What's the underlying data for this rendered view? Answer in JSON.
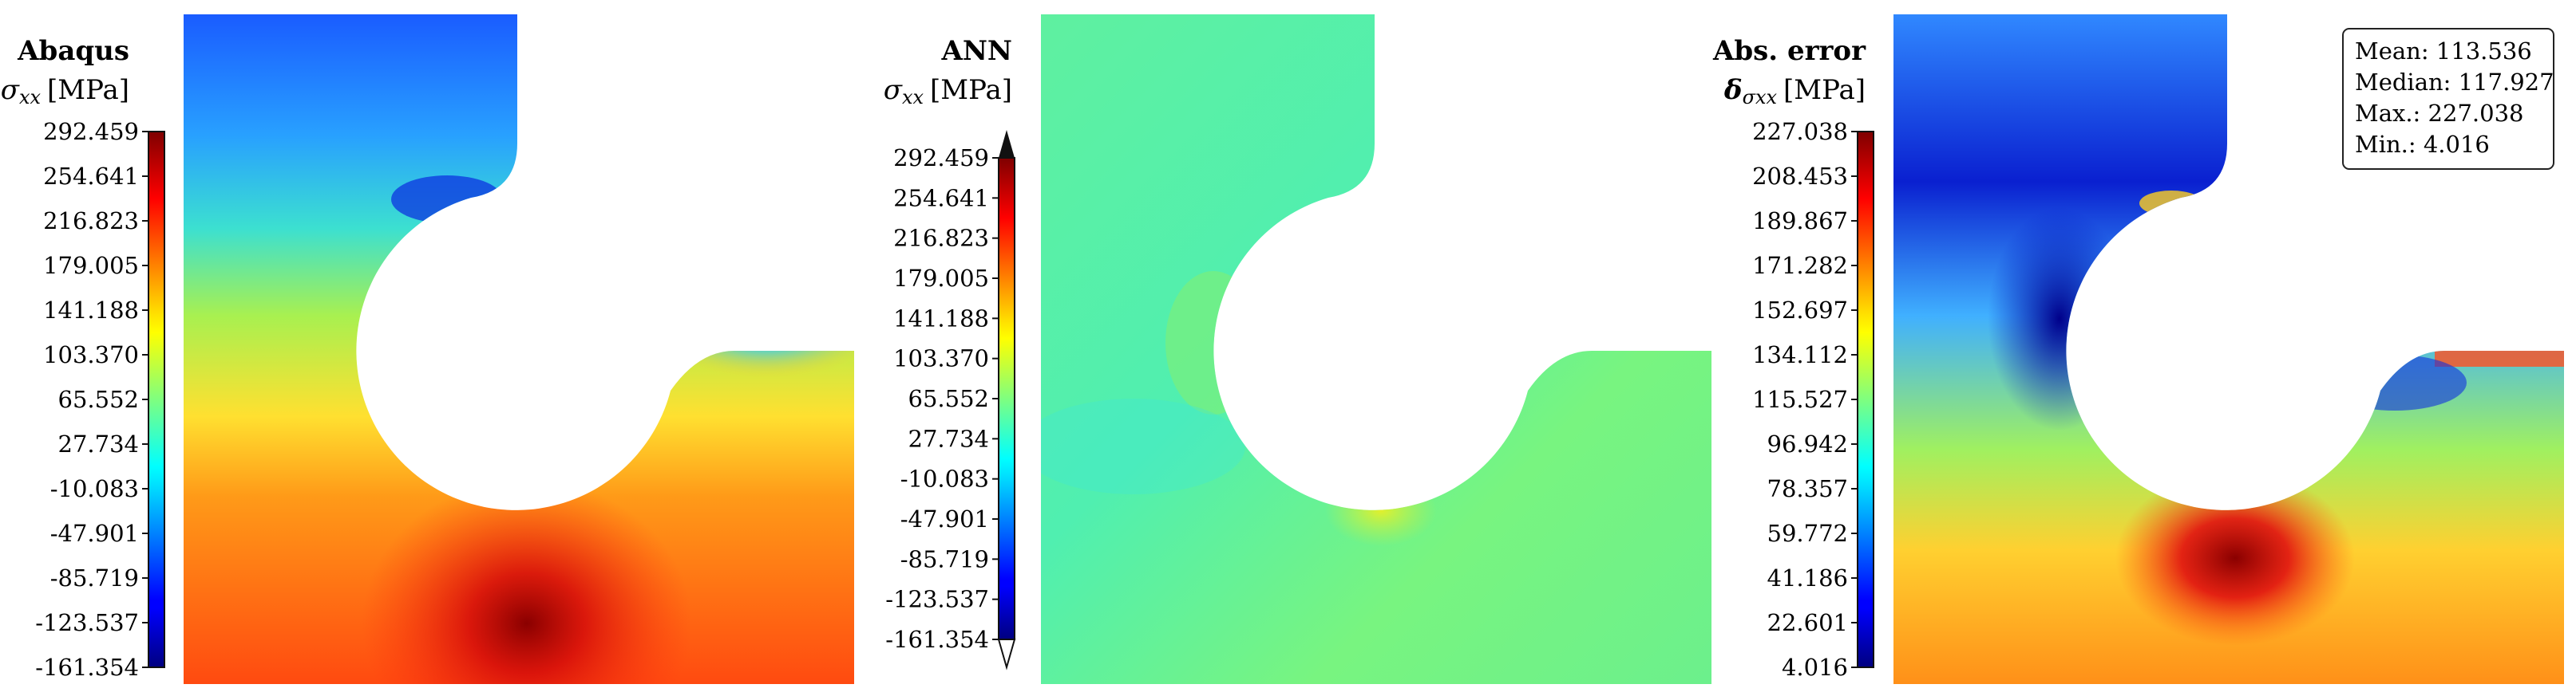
{
  "chart_data": [
    {
      "type": "heatmap",
      "id": "abaqus",
      "title": "Abaqus",
      "quantity": "σ",
      "quantity_sub": "xx",
      "unit": "[MPa]",
      "range": [
        -161.354,
        292.459
      ],
      "ticks": [
        "292.459",
        "254.641",
        "216.823",
        "179.005",
        "141.188",
        "103.370",
        "65.552",
        "27.734",
        "-10.083",
        "-47.901",
        "-85.719",
        "-123.537",
        "-161.354"
      ],
      "colorbar_extend": "none"
    },
    {
      "type": "heatmap",
      "id": "ann",
      "title": "ANN",
      "quantity": "σ",
      "quantity_sub": "xx",
      "unit": "[MPa]",
      "range": [
        -161.354,
        292.459
      ],
      "ticks": [
        "292.459",
        "254.641",
        "216.823",
        "179.005",
        "141.188",
        "103.370",
        "65.552",
        "27.734",
        "-10.083",
        "-47.901",
        "-85.719",
        "-123.537",
        "-161.354"
      ],
      "colorbar_extend": "both"
    },
    {
      "type": "heatmap",
      "id": "error",
      "title": "Abs. error",
      "quantity": "δ",
      "quantity_sub": "σxx",
      "unit": "[MPa]",
      "range": [
        4.016,
        227.038
      ],
      "ticks": [
        "227.038",
        "208.453",
        "189.867",
        "171.282",
        "152.697",
        "134.112",
        "115.527",
        "96.942",
        "78.357",
        "59.772",
        "41.186",
        "22.601",
        "4.016"
      ],
      "colorbar_extend": "none",
      "stats": [
        "Mean: 113.536",
        "Median: 117.927",
        "Max.: 227.038",
        "Min.: 4.016"
      ]
    }
  ],
  "colors": {
    "axis": "#111111",
    "cutout": "#ffffff",
    "background": "#ffffff"
  }
}
